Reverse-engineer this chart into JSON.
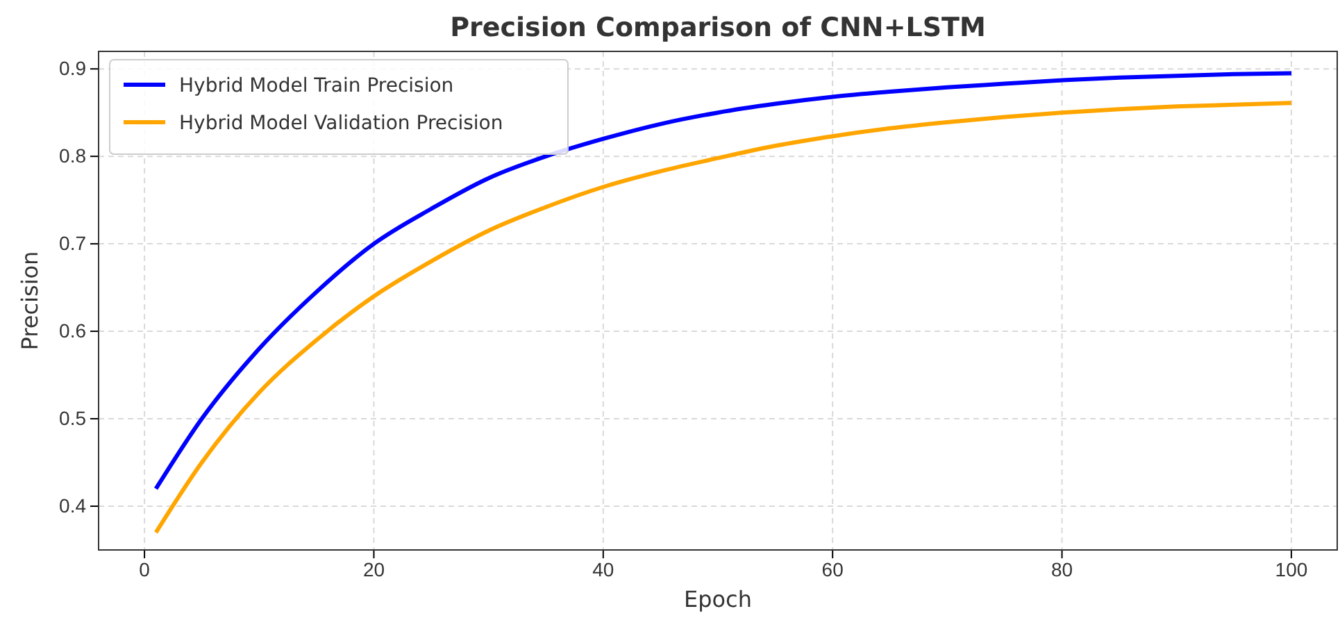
{
  "chart_data": {
    "type": "line",
    "title": "Precision Comparison of CNN+LSTM",
    "xlabel": "Epoch",
    "ylabel": "Precision",
    "x": [
      1,
      5,
      10,
      15,
      20,
      25,
      30,
      35,
      40,
      45,
      50,
      55,
      60,
      65,
      70,
      75,
      80,
      85,
      90,
      95,
      100
    ],
    "series": [
      {
        "name": "Hybrid Model Train Precision",
        "color": "#0000ff",
        "values": [
          0.42,
          0.5,
          0.58,
          0.645,
          0.7,
          0.74,
          0.775,
          0.8,
          0.82,
          0.837,
          0.85,
          0.86,
          0.868,
          0.874,
          0.879,
          0.883,
          0.887,
          0.89,
          0.892,
          0.894,
          0.895
        ]
      },
      {
        "name": "Hybrid Model Validation Precision",
        "color": "#ffa500",
        "values": [
          0.37,
          0.45,
          0.53,
          0.59,
          0.64,
          0.68,
          0.715,
          0.742,
          0.765,
          0.783,
          0.798,
          0.812,
          0.823,
          0.832,
          0.839,
          0.845,
          0.85,
          0.854,
          0.857,
          0.859,
          0.861
        ]
      }
    ],
    "xlim": [
      -4,
      104
    ],
    "xticks": [
      0,
      20,
      40,
      60,
      80,
      100
    ],
    "ylim": [
      0.35,
      0.92
    ],
    "yticks": [
      0.4,
      0.5,
      0.6,
      0.7,
      0.8,
      0.9
    ],
    "grid": true,
    "legend": "top left",
    "line_style": "solid",
    "marker": "none"
  }
}
